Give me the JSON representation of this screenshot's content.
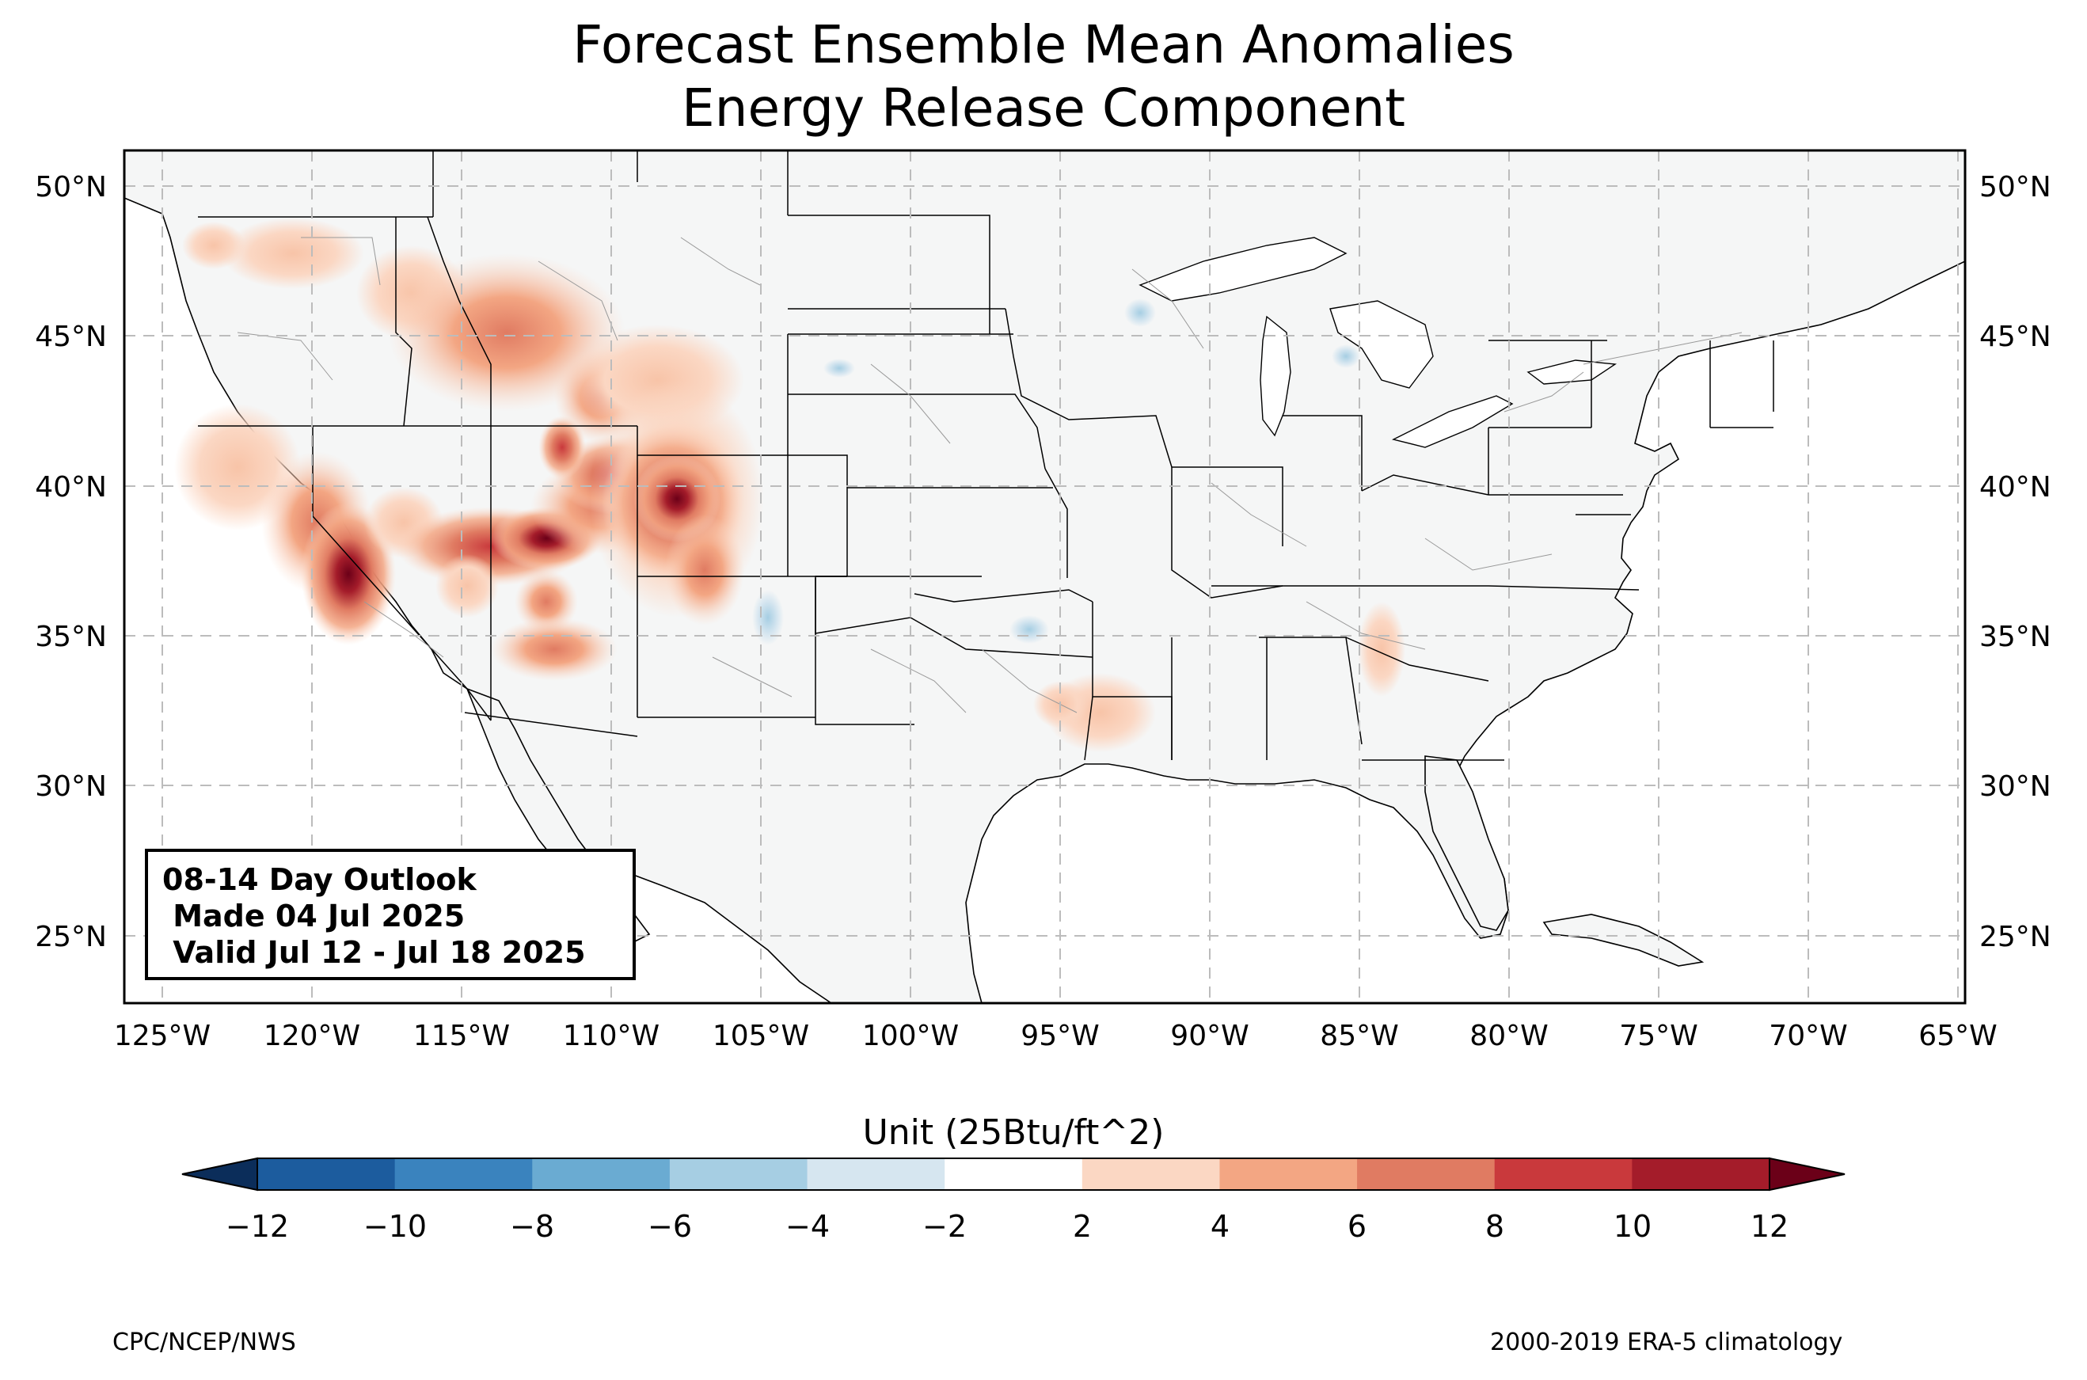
{
  "title": {
    "line1": "Forecast Ensemble Mean Anomalies",
    "line2": "Energy Release Component"
  },
  "map": {
    "projection": "PlateCarree",
    "lon_range": [
      -126.3,
      -64.9
    ],
    "lat_range": [
      22.8,
      51.2
    ],
    "gridlines": "dashed",
    "lat_ticks": [
      "25°N",
      "30°N",
      "35°N",
      "40°N",
      "45°N",
      "50°N"
    ],
    "lon_ticks": [
      "125°W",
      "120°W",
      "115°W",
      "110°W",
      "105°W",
      "100°W",
      "95°W",
      "90°W",
      "85°W",
      "80°W",
      "75°W",
      "70°W",
      "65°W"
    ],
    "land_color": "#f5f6f6",
    "anomaly_regions": [
      {
        "name": "Central California / Sierra Nevada",
        "lon": -119.2,
        "lat": 36.8,
        "peak": 12
      },
      {
        "name": "Southern Utah",
        "lon": -112.5,
        "lat": 38.2,
        "peak": 10
      },
      {
        "name": "Western Colorado",
        "lon": -108.0,
        "lat": 39.4,
        "peak": 12
      },
      {
        "name": "Northern Utah / Uinta",
        "lon": -109.5,
        "lat": 40.3,
        "peak": 10
      },
      {
        "name": "Idaho / Montana",
        "lon": -114.0,
        "lat": 44.5,
        "peak": 8
      },
      {
        "name": "Northern California / Oregon",
        "lon": -122.0,
        "lat": 41.0,
        "peak": 6
      },
      {
        "name": "Arizona",
        "lon": -111.5,
        "lat": 34.0,
        "peak": 6
      },
      {
        "name": "Louisiana / Arkansas",
        "lon": -92.5,
        "lat": 32.5,
        "peak": 4
      },
      {
        "name": "Georgia / South Carolina",
        "lon": -84.0,
        "lat": 34.0,
        "peak": 4
      }
    ]
  },
  "infobox": {
    "line1": "08-14 Day Outlook",
    "line2": " Made 04 Jul 2025",
    "line3": " Valid Jul 12 - Jul 18 2025"
  },
  "colorbar": {
    "label": "Unit (25Btu/ft^2)",
    "extend": "both",
    "ticks": [
      "−12",
      "−10",
      "−8",
      "−6",
      "−4",
      "−2",
      "2",
      "4",
      "6",
      "8",
      "10",
      "12"
    ],
    "colors": [
      "#1c5c9e",
      "#3a83be",
      "#6aabd2",
      "#a6cee3",
      "#d6e6f0",
      "#ffffff",
      "#fbd7c3",
      "#f3a683",
      "#e07b62",
      "#c9393c",
      "#a41c2a"
    ],
    "under_color": "#0b2d5a",
    "over_color": "#6b0018"
  },
  "credits": {
    "left": "CPC/NCEP/NWS",
    "right": "2000-2019 ERA-5 climatology"
  }
}
